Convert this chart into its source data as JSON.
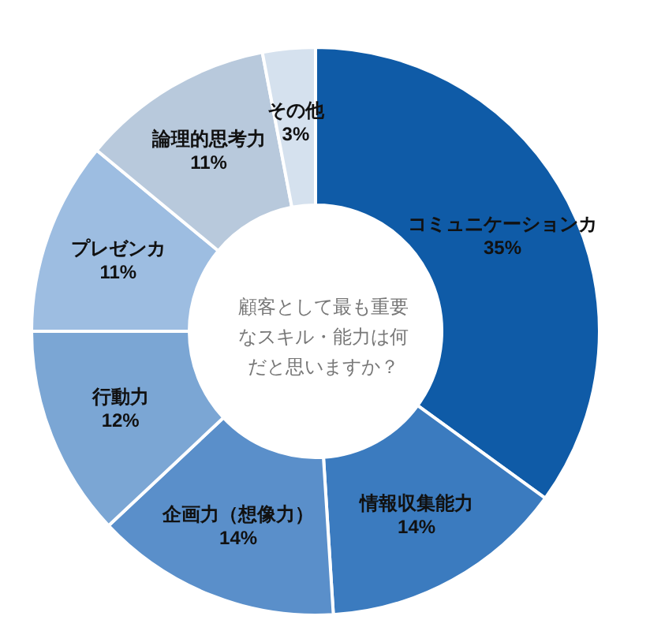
{
  "chart_data": {
    "type": "donut",
    "title": "顧客として最も重要なスキル・能力は何だと思いますか？",
    "categories": [
      "コミュニケーションカ",
      "情報収集能力",
      "企画力（想像力）",
      "行動力",
      "プレゼンカ",
      "論理的思考力",
      "その他"
    ],
    "values": [
      35,
      14,
      14,
      12,
      11,
      11,
      3
    ],
    "value_labels": [
      "35%",
      "14%",
      "14%",
      "12%",
      "11%",
      "11%",
      "3%"
    ],
    "colors": [
      "#0f5ba7",
      "#3b7bbf",
      "#5a8fca",
      "#7ba6d4",
      "#9dbde1",
      "#b8c9dc",
      "#d5e1ee"
    ],
    "legend": false
  }
}
